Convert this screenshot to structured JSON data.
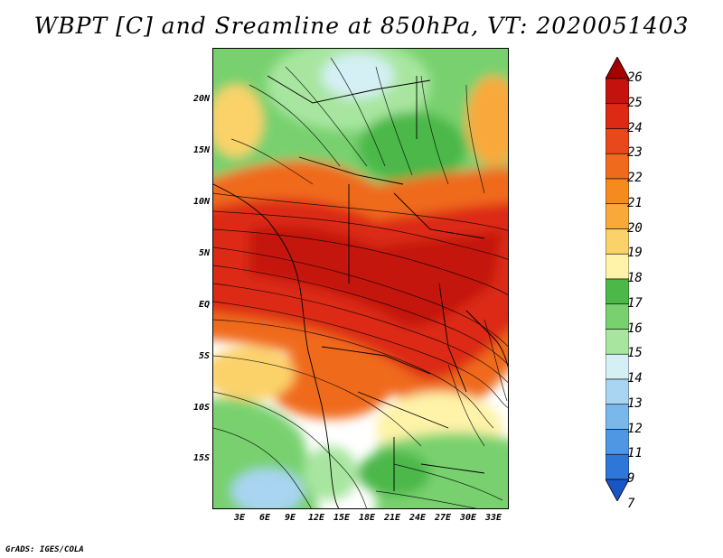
{
  "title": "WBPT [C] and Sreamline at 850hPa, VT: 2020051403",
  "credit": "GrADS: IGES/COLA",
  "y_axis_labels": [
    "20N",
    "15N",
    "10N",
    "5N",
    "EQ",
    "5S",
    "10S",
    "15S"
  ],
  "x_axis_labels": [
    "3E",
    "6E",
    "9E",
    "12E",
    "15E",
    "18E",
    "21E",
    "24E",
    "27E",
    "30E",
    "33E"
  ],
  "colorbar": {
    "levels": [
      "26",
      "25",
      "24",
      "23",
      "22",
      "21",
      "20",
      "19",
      "18",
      "17",
      "16",
      "15",
      "14",
      "13",
      "12",
      "11",
      "9",
      "7"
    ],
    "colors": [
      "#a50000",
      "#c4120f",
      "#dc2a14",
      "#e8481c",
      "#f06a1e",
      "#f58a1e",
      "#f9a93a",
      "#fbd26a",
      "#fef3a8",
      "#4bb848",
      "#78d16e",
      "#a8e6a0",
      "#d5f0f4",
      "#a9d4f2",
      "#7ab8ec",
      "#4f97e3",
      "#2e76d8",
      "#1a55c8"
    ]
  },
  "map": {
    "variable": "WBPT",
    "units": "C",
    "level": "850hPa",
    "valid_time": "2020051403"
  }
}
